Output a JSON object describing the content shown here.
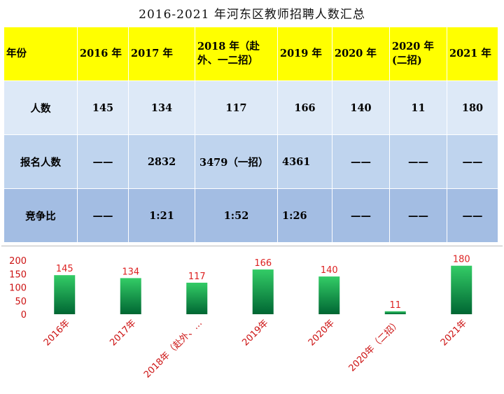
{
  "title": "2016-2021 年河东区教师招聘人数汇总",
  "table": {
    "header": [
      "年份",
      "2016 年",
      "2017 年",
      "2018 年（赴外、一二招）",
      "2019 年",
      "2020 年",
      "2020 年(二招)",
      "2021 年"
    ],
    "rows": [
      {
        "label": "人数",
        "cells": [
          "145",
          "134",
          "117",
          "166",
          "140",
          "11",
          "180"
        ]
      },
      {
        "label": "报名人数",
        "cells": [
          "——",
          "2832",
          "3479（一招）",
          "4361",
          "——",
          "——",
          "——"
        ]
      },
      {
        "label": "竞争比",
        "cells": [
          "——",
          "1:21",
          "1:52",
          "1:26",
          "——",
          "——",
          "——"
        ]
      }
    ]
  },
  "chart_data": {
    "type": "bar",
    "categories": [
      "2016年",
      "2017年",
      "2018年（赴外、…",
      "2019年",
      "2020年",
      "2020年（二招）",
      "2021年"
    ],
    "values": [
      145,
      134,
      117,
      166,
      140,
      11,
      180
    ],
    "y_ticks": [
      "0",
      "50",
      "100",
      "150",
      "200"
    ],
    "ylim": [
      0,
      200
    ],
    "grid": false,
    "legend": "none",
    "colors": {
      "bar_top": "#33cc66",
      "bar_bottom": "#006633",
      "label": "#dd2222",
      "axis_text": "#cc1111"
    }
  }
}
